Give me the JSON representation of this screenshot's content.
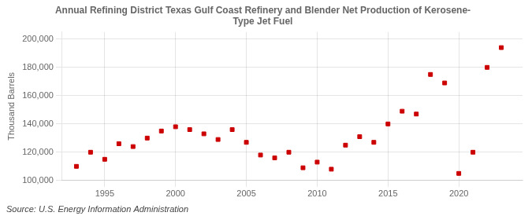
{
  "chart_data": {
    "type": "scatter",
    "title": "Annual Refining District Texas Gulf Coast Refinery and Blender Net Production of Kerosene-\nType Jet Fuel",
    "ylabel": "Thousand Barrels",
    "annotation": "Source: U.S. Energy Information Administration",
    "color": "#cc0000",
    "marker": "square",
    "x": [
      1993,
      1994,
      1995,
      1996,
      1997,
      1998,
      1999,
      2000,
      2001,
      2002,
      2003,
      2004,
      2005,
      2006,
      2007,
      2008,
      2009,
      2010,
      2011,
      2012,
      2013,
      2014,
      2015,
      2016,
      2017,
      2018,
      2019,
      2020,
      2021,
      2022,
      2023
    ],
    "values": [
      110000,
      120000,
      115000,
      126000,
      124000,
      130000,
      135000,
      138000,
      136000,
      133000,
      129000,
      136000,
      127000,
      118000,
      116000,
      120000,
      109000,
      113000,
      108000,
      125000,
      131000,
      127000,
      140000,
      149000,
      147000,
      175000,
      169000,
      105000,
      120000,
      180000,
      194000
    ],
    "xlim": [
      1992.0,
      2024.5
    ],
    "xticks": [
      1995,
      2000,
      2005,
      2010,
      2015,
      2020
    ],
    "ylim": [
      100000,
      205000
    ],
    "yticks": [
      {
        "value": 100000,
        "label": "100,000"
      },
      {
        "value": 120000,
        "label": "120,000"
      },
      {
        "value": 140000,
        "label": "140,000"
      },
      {
        "value": 160000,
        "label": "160,000"
      },
      {
        "value": 180000,
        "label": "180,000"
      },
      {
        "value": 200000,
        "label": "200,000"
      }
    ],
    "grid": true
  }
}
